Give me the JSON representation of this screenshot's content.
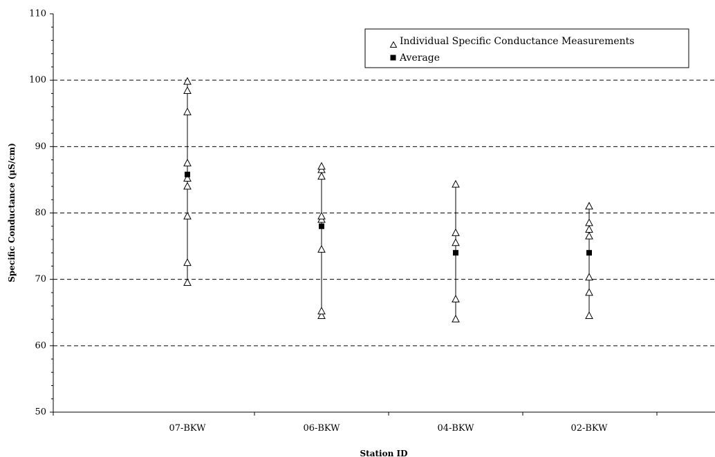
{
  "chart_data": {
    "type": "scatter",
    "title": "",
    "xlabel": "Station ID",
    "ylabel": "Specific Conductance (µS/cm)",
    "ylim": [
      50,
      110
    ],
    "yticks": [
      50,
      60,
      70,
      80,
      90,
      100,
      110
    ],
    "grid": "horizontal dashed at 60, 70, 80, 90, 100",
    "legend_position": "top-right",
    "categories": [
      "07-BKW",
      "06-BKW",
      "04-BKW",
      "02-BKW"
    ],
    "series": [
      {
        "name": "Individual Specific Conductance Measurements",
        "marker": "open-triangle",
        "values": [
          [
            69.5,
            72.5,
            79.5,
            84.0,
            85.2,
            87.5,
            95.2,
            98.4,
            99.8
          ],
          [
            64.5,
            65.2,
            74.5,
            79.0,
            79.5,
            85.5,
            86.5,
            87.0
          ],
          [
            64.0,
            67.0,
            75.5,
            77.0,
            84.3
          ],
          [
            64.5,
            68.0,
            70.3,
            76.5,
            77.5,
            78.5,
            81.0
          ]
        ]
      },
      {
        "name": "Average",
        "marker": "filled-square",
        "values": [
          85.8,
          78.0,
          74.0,
          74.0
        ]
      }
    ]
  }
}
